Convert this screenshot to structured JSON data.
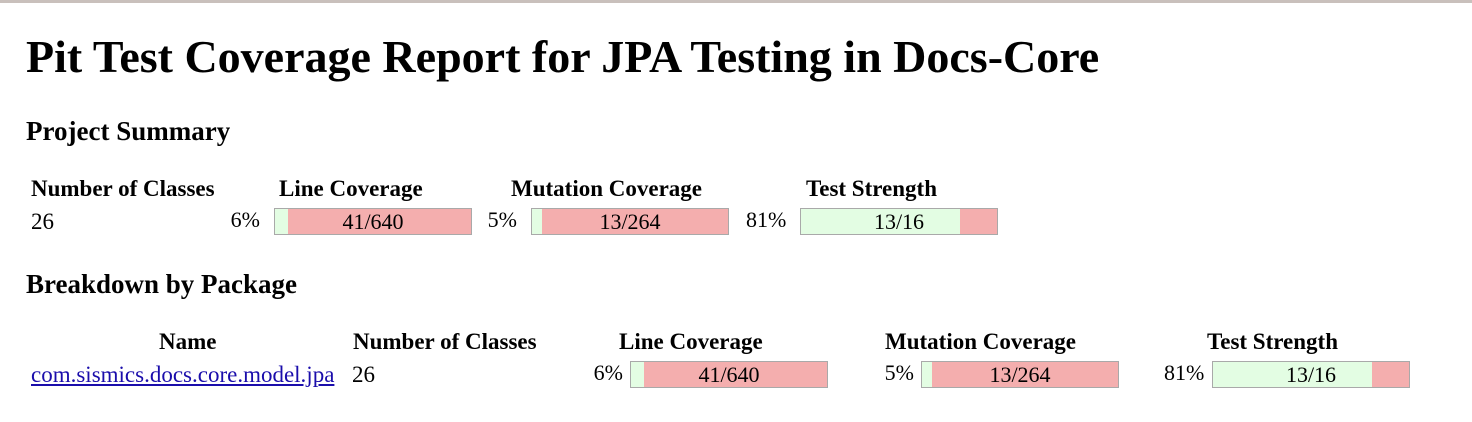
{
  "title": "Pit Test Coverage Report for JPA Testing in Docs-Core",
  "project_summary": {
    "heading": "Project Summary",
    "headers": {
      "classes": "Number of Classes",
      "line": "Line Coverage",
      "mutation": "Mutation Coverage",
      "strength": "Test Strength"
    },
    "classes": "26",
    "line": {
      "percent": "6%",
      "ratio": "41/640",
      "fraction": 0.064
    },
    "mutation": {
      "percent": "5%",
      "ratio": "13/264",
      "fraction": 0.049
    },
    "strength": {
      "percent": "81%",
      "ratio": "13/16",
      "fraction": 0.8125
    }
  },
  "breakdown": {
    "heading": "Breakdown by Package",
    "headers": {
      "name": "Name",
      "classes": "Number of Classes",
      "line": "Line Coverage",
      "mutation": "Mutation Coverage",
      "strength": "Test Strength"
    },
    "rows": [
      {
        "name": "com.sismics.docs.core.model.jpa",
        "classes": "26",
        "line": {
          "percent": "6%",
          "ratio": "41/640",
          "fraction": 0.064
        },
        "mutation": {
          "percent": "5%",
          "ratio": "13/264",
          "fraction": 0.049
        },
        "strength": {
          "percent": "81%",
          "ratio": "13/16",
          "fraction": 0.8125
        }
      }
    ]
  },
  "colors": {
    "covered": "#e3fde3",
    "uncovered": "#f4aeae",
    "link": "#1a0dab"
  }
}
